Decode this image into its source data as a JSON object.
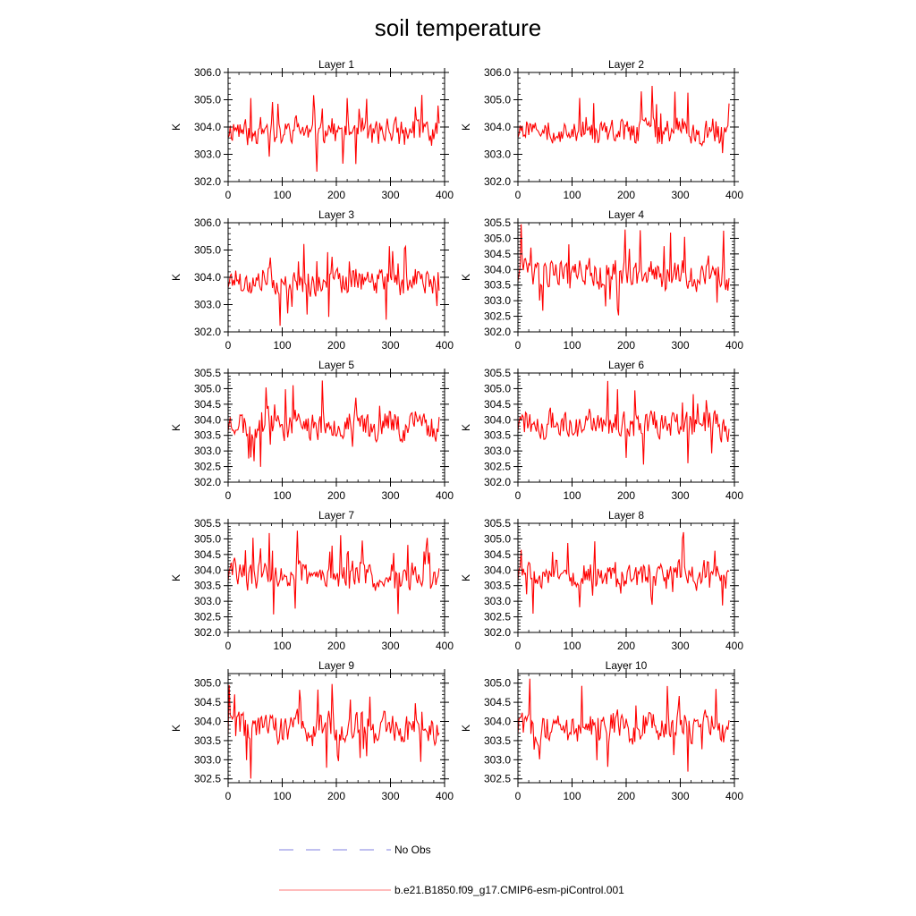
{
  "chart_data": {
    "title": "soil temperature",
    "type": "line",
    "xlim": [
      0,
      400
    ],
    "x_ticks": [
      "0",
      "100",
      "200",
      "300",
      "400"
    ],
    "legend_position": "bottom",
    "legend": [
      {
        "label": "No Obs",
        "style": "dashed",
        "color": "#8080e0"
      },
      {
        "label": "b.e21.B1850.f09_g17.CMIP6-esm-piControl.001",
        "style": "solid",
        "color": "#ff0000"
      }
    ],
    "panels": [
      {
        "title": "Layer 1",
        "ylabel": "K",
        "ylim": [
          302.0,
          306.0
        ],
        "yticks": [
          302.0,
          303.0,
          304.0,
          305.0,
          306.0
        ],
        "ytick_labels": [
          "302.0",
          "303.0",
          "304.0",
          "305.0",
          "306.0"
        ],
        "mean": 303.85,
        "amp": 0.6,
        "seed": 11
      },
      {
        "title": "Layer 2",
        "ylabel": "K",
        "ylim": [
          302.0,
          306.0
        ],
        "yticks": [
          302.0,
          303.0,
          304.0,
          305.0,
          306.0
        ],
        "ytick_labels": [
          "302.0",
          "303.0",
          "304.0",
          "305.0",
          "306.0"
        ],
        "mean": 303.85,
        "amp": 0.6,
        "seed": 11
      },
      {
        "title": "Layer 3",
        "ylabel": "K",
        "ylim": [
          302.0,
          306.0
        ],
        "yticks": [
          302.0,
          303.0,
          304.0,
          305.0,
          306.0
        ],
        "ytick_labels": [
          "302.0",
          "303.0",
          "304.0",
          "305.0",
          "306.0"
        ],
        "mean": 303.85,
        "amp": 0.58,
        "seed": 11
      },
      {
        "title": "Layer 4",
        "ylabel": "K",
        "ylim": [
          302.0,
          305.5
        ],
        "yticks": [
          302.0,
          302.5,
          303.0,
          303.5,
          304.0,
          304.5,
          305.0,
          305.5
        ],
        "ytick_labels": [
          "302.0",
          "302.5",
          "303.0",
          "303.5",
          "304.0",
          "304.5",
          "305.0",
          "305.5"
        ],
        "mean": 303.85,
        "amp": 0.57,
        "seed": 11
      },
      {
        "title": "Layer 5",
        "ylabel": "K",
        "ylim": [
          302.0,
          305.5
        ],
        "yticks": [
          302.0,
          302.5,
          303.0,
          303.5,
          304.0,
          304.5,
          305.0,
          305.5
        ],
        "ytick_labels": [
          "302.0",
          "302.5",
          "303.0",
          "303.5",
          "304.0",
          "304.5",
          "305.0",
          "305.5"
        ],
        "mean": 303.85,
        "amp": 0.55,
        "seed": 11
      },
      {
        "title": "Layer 6",
        "ylabel": "K",
        "ylim": [
          302.0,
          305.5
        ],
        "yticks": [
          302.0,
          302.5,
          303.0,
          303.5,
          304.0,
          304.5,
          305.0,
          305.5
        ],
        "ytick_labels": [
          "302.0",
          "302.5",
          "303.0",
          "303.5",
          "304.0",
          "304.5",
          "305.0",
          "305.5"
        ],
        "mean": 303.85,
        "amp": 0.54,
        "seed": 11
      },
      {
        "title": "Layer 7",
        "ylabel": "K",
        "ylim": [
          302.0,
          305.5
        ],
        "yticks": [
          302.0,
          302.5,
          303.0,
          303.5,
          304.0,
          304.5,
          305.0,
          305.5
        ],
        "ytick_labels": [
          "302.0",
          "302.5",
          "303.0",
          "303.5",
          "304.0",
          "304.5",
          "305.0",
          "305.5"
        ],
        "mean": 303.85,
        "amp": 0.52,
        "seed": 11
      },
      {
        "title": "Layer 8",
        "ylabel": "K",
        "ylim": [
          302.0,
          305.5
        ],
        "yticks": [
          302.0,
          302.5,
          303.0,
          303.5,
          304.0,
          304.5,
          305.0,
          305.5
        ],
        "ytick_labels": [
          "302.0",
          "302.5",
          "303.0",
          "303.5",
          "304.0",
          "304.5",
          "305.0",
          "305.5"
        ],
        "mean": 303.85,
        "amp": 0.5,
        "seed": 11
      },
      {
        "title": "Layer 9",
        "ylabel": "K",
        "ylim": [
          302.4,
          305.25
        ],
        "yticks": [
          302.5,
          303.0,
          303.5,
          304.0,
          304.5,
          305.0
        ],
        "ytick_labels": [
          "302.5",
          "303.0",
          "303.5",
          "304.0",
          "304.5",
          "305.0"
        ],
        "mean": 303.85,
        "amp": 0.48,
        "seed": 11
      },
      {
        "title": "Layer 10",
        "ylabel": "K",
        "ylim": [
          302.4,
          305.25
        ],
        "yticks": [
          302.5,
          303.0,
          303.5,
          304.0,
          304.5,
          305.0
        ],
        "ytick_labels": [
          "302.5",
          "303.0",
          "303.5",
          "304.0",
          "304.5",
          "305.0"
        ],
        "mean": 303.85,
        "amp": 0.46,
        "seed": 11
      }
    ]
  }
}
